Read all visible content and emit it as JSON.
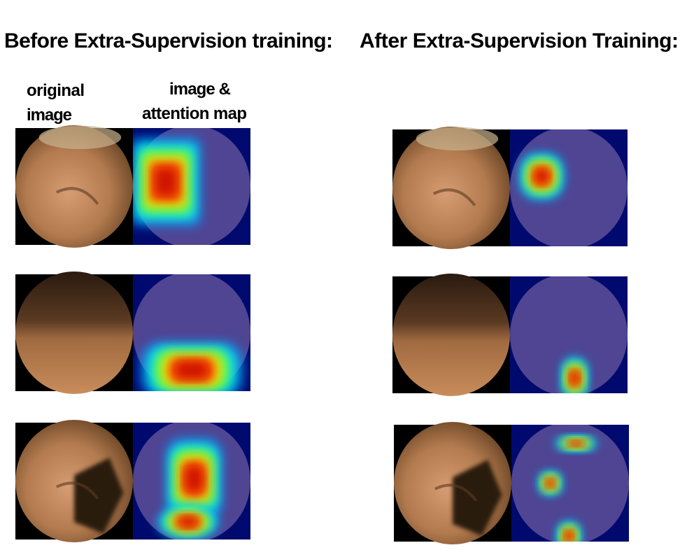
{
  "headings": {
    "before": "Before Extra-Supervision training:",
    "after": "After Extra-Supervision Training:"
  },
  "column_labels": {
    "original_image": [
      "original",
      "image"
    ],
    "attention_map": [
      "image &",
      "attention map"
    ]
  }
}
